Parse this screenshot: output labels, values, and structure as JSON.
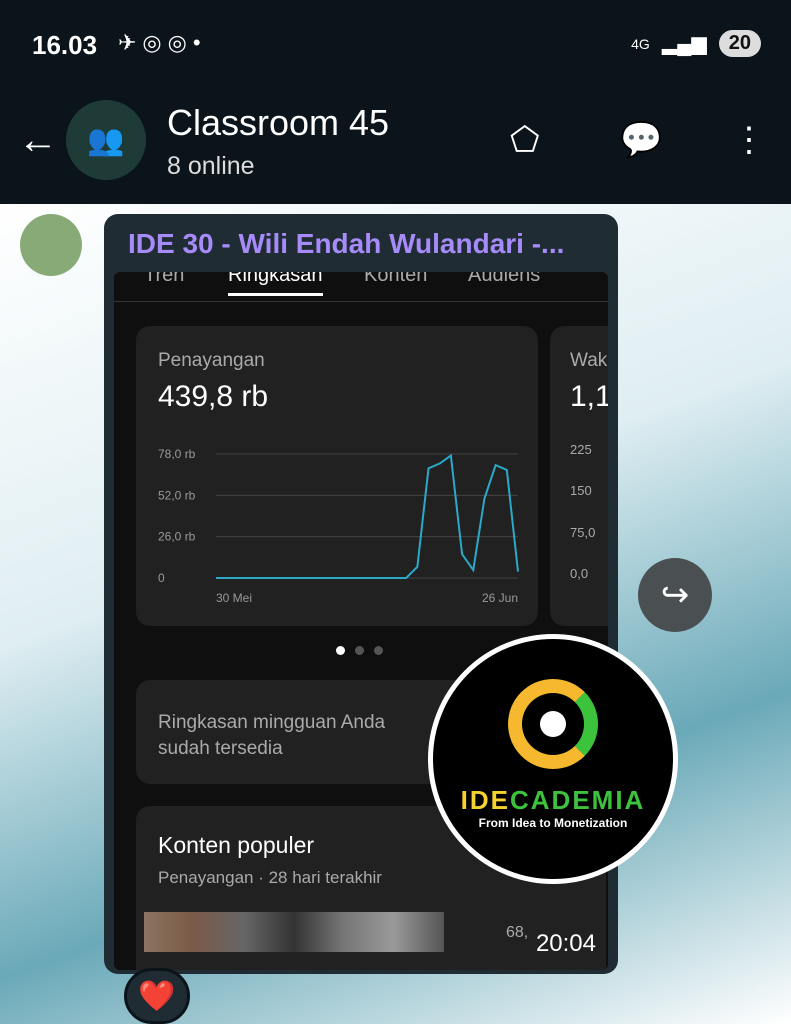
{
  "status_bar": {
    "time": "16.03",
    "network": "4G",
    "battery": "20"
  },
  "header": {
    "title": "Classroom 45",
    "subtitle": "8 online"
  },
  "message": {
    "sender": "IDE 30 - Wili Endah Wulandari -...",
    "time": "20:04",
    "reaction": "❤️"
  },
  "screenshot": {
    "tabs": [
      "Tren",
      "Ringkasan",
      "Konten",
      "Audiens"
    ],
    "active_tab": "Ringkasan",
    "views_card": {
      "label": "Penayangan",
      "value": "439,8 rb",
      "y_ticks": [
        "78,0 rb",
        "52,0 rb",
        "26,0 rb",
        "0"
      ],
      "x_labels": [
        "30 Mei",
        "26 Jun"
      ]
    },
    "watch_card": {
      "label": "Wak",
      "value": "1,1",
      "y_ticks": [
        "225",
        "150",
        "75,0",
        "0,0"
      ]
    },
    "weekly_summary": "Ringkasan mingguan Anda sudah tersedia",
    "popular": {
      "title": "Konten populer",
      "subtitle": "Penayangan · 28 hari terakhir",
      "row_value": "68,"
    },
    "line_color": "#2aa9c9"
  },
  "logo": {
    "name": "IDECADEMIA",
    "tagline": "From Idea to Monetization"
  },
  "chart_data": {
    "type": "line",
    "title": "Penayangan",
    "x": [
      "30 Mei",
      "31 Mei",
      "1 Jun",
      "2 Jun",
      "3 Jun",
      "4 Jun",
      "5 Jun",
      "6 Jun",
      "7 Jun",
      "8 Jun",
      "9 Jun",
      "10 Jun",
      "11 Jun",
      "12 Jun",
      "13 Jun",
      "14 Jun",
      "15 Jun",
      "16 Jun",
      "17 Jun",
      "18 Jun",
      "19 Jun",
      "20 Jun",
      "21 Jun",
      "22 Jun",
      "23 Jun",
      "24 Jun",
      "25 Jun",
      "26 Jun"
    ],
    "values": [
      0,
      0,
      0,
      0,
      0,
      0,
      0,
      0,
      0,
      0,
      0,
      0,
      0,
      0,
      0,
      0,
      0,
      0,
      7,
      69,
      72,
      77,
      15,
      5,
      50,
      71,
      68,
      4
    ],
    "unit": "rb",
    "ylim": [
      0,
      78
    ],
    "y_ticks": [
      0,
      26,
      52,
      78
    ],
    "grid": true
  }
}
